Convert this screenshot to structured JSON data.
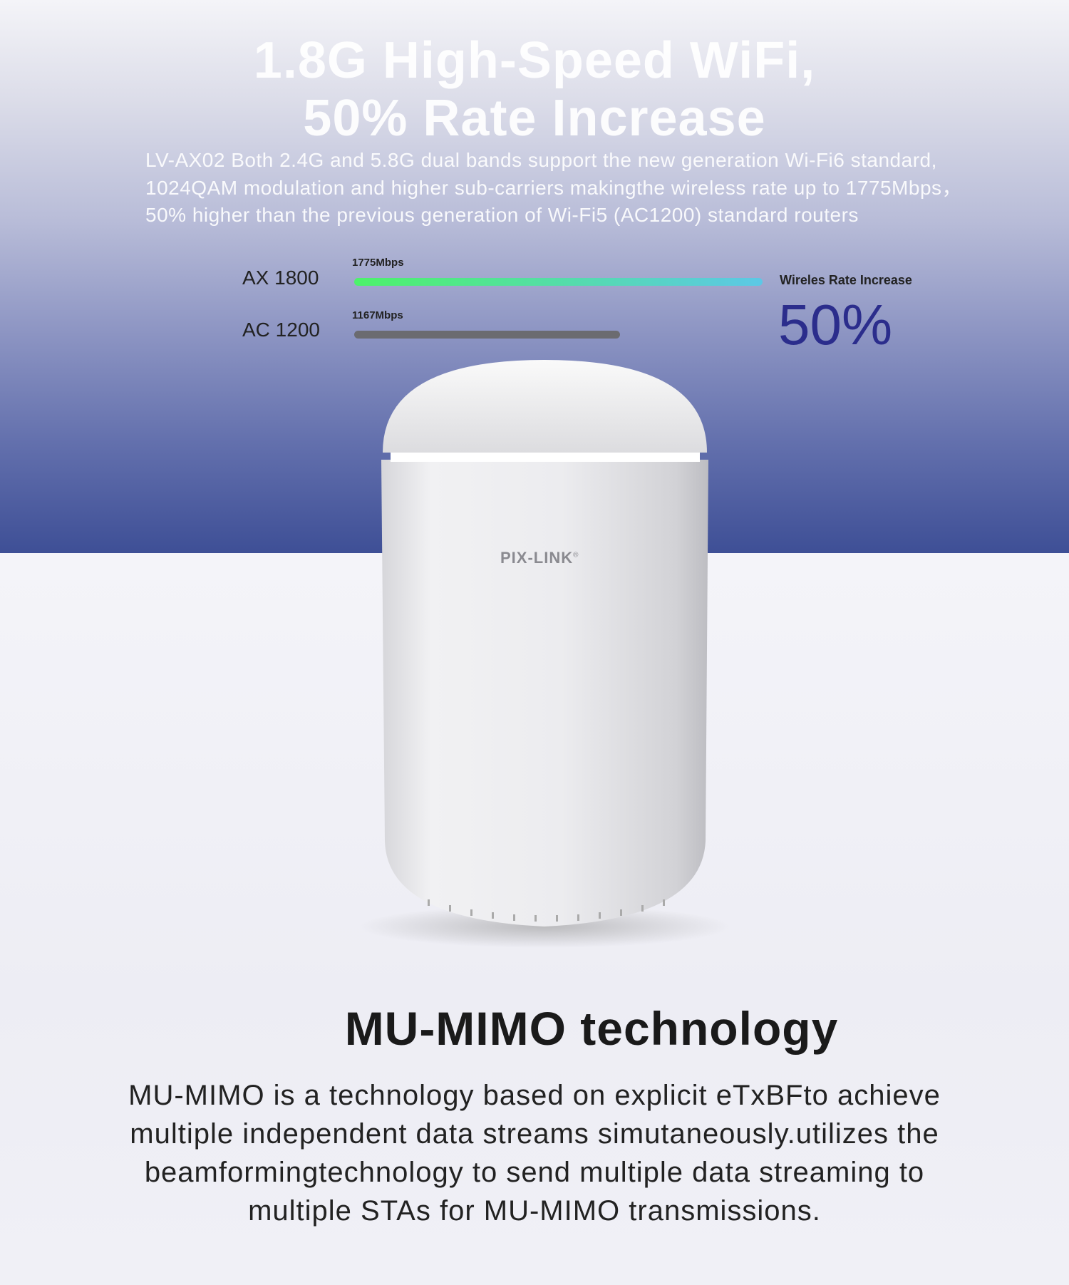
{
  "hero": {
    "title_line1": "1.8G High-Speed WiFi,",
    "title_line2": "50% Rate Increase",
    "description": "LV-AX02 Both 2.4G and 5.8G dual bands support the new generation Wi-Fi6 standard, 1024QAM modulation and higher sub-carriers makingthe wireless rate up to 1775Mbps，50% higher than the previous generation of Wi-Fi5 (AC1200) standard routers"
  },
  "comparison": {
    "rows": [
      {
        "label": "AX 1800",
        "value_label": "1775Mbps",
        "value": 1775,
        "color_start": "#4df26a",
        "color_end": "#5cc8e6"
      },
      {
        "label": "AC 1200",
        "value_label": "1167Mbps",
        "value": 1167,
        "color_start": "#6b6b70",
        "color_end": "#6b6b70"
      }
    ],
    "increase_label": "Wireles Rate Increase",
    "increase_value": "50%",
    "accent": "#2b2d8c"
  },
  "product": {
    "brand": "PIX-LINK",
    "trademark": "®"
  },
  "mumimo": {
    "heading": "MU-MIMO technology",
    "lines": [
      "MU-MIMO is a technology based on explicit eTxBFto achieve",
      "multiple independent data streams simutaneously.utilizes the",
      "beamformingtechnology to send multiple data streaming to",
      "multiple STAs for MU-MIMO transmissions."
    ]
  }
}
